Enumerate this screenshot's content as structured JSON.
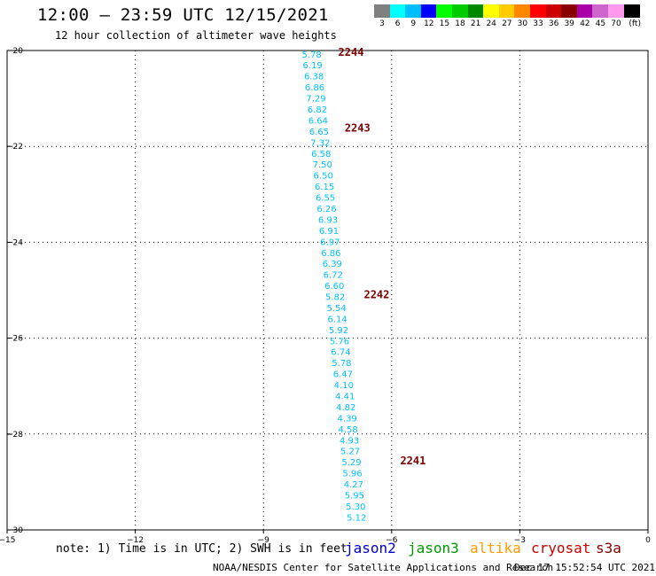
{
  "title": "12:00 — 23:59 UTC 12/15/2021",
  "subtitle": "12 hour collection of altimeter wave heights",
  "note": "note: 1) Time is in UTC; 2) SWH is in feet",
  "satellites": [
    {
      "name": "jason2",
      "color": "#0000cc"
    },
    {
      "name": "jason3",
      "color": "#009900"
    },
    {
      "name": "altika",
      "color": "#ff9900"
    },
    {
      "name": "cryosat",
      "color": "#cc0000"
    },
    {
      "name": "s3a",
      "color": "#800000"
    }
  ],
  "credit": "NOAA/NESDIS Center for Satellite Applications and Research",
  "timestamp": "Dec 17 15:52:54 UTC 2021",
  "colorbar": {
    "unit": "(ft)",
    "bins": [
      {
        "label": "3",
        "color": "#808080"
      },
      {
        "label": "6",
        "color": "#00ffff"
      },
      {
        "label": "9",
        "color": "#00bfff"
      },
      {
        "label": "12",
        "color": "#0000ff"
      },
      {
        "label": "15",
        "color": "#00ff00"
      },
      {
        "label": "18",
        "color": "#00cc00"
      },
      {
        "label": "21",
        "color": "#008800"
      },
      {
        "label": "24",
        "color": "#ffff00"
      },
      {
        "label": "27",
        "color": "#ffcc00"
      },
      {
        "label": "30",
        "color": "#ff8800"
      },
      {
        "label": "33",
        "color": "#ff0000"
      },
      {
        "label": "36",
        "color": "#cc0000"
      },
      {
        "label": "39",
        "color": "#880000"
      },
      {
        "label": "42",
        "color": "#aa00aa"
      },
      {
        "label": "45",
        "color": "#cc66cc"
      },
      {
        "label": "70",
        "color": "#ff99ee"
      },
      {
        "label": "",
        "color": "#000000"
      }
    ]
  },
  "chart_data": {
    "type": "scatter",
    "xlim": [
      -15,
      0
    ],
    "ylim": [
      -30,
      -20
    ],
    "x_ticks": [
      -15,
      -12,
      -9,
      -6,
      -3,
      0
    ],
    "y_ticks": [
      -20,
      -22,
      -24,
      -26,
      -28,
      -30
    ],
    "grid": true,
    "value_color": "#00bfff",
    "values": [
      {
        "x": -7.87,
        "y": -20.07,
        "v": "5.78"
      },
      {
        "x": -7.85,
        "y": -20.3,
        "v": "6.19"
      },
      {
        "x": -7.82,
        "y": -20.53,
        "v": "6.38"
      },
      {
        "x": -7.8,
        "y": -20.76,
        "v": "6.86"
      },
      {
        "x": -7.77,
        "y": -20.99,
        "v": "7.29"
      },
      {
        "x": -7.74,
        "y": -21.22,
        "v": "6.82"
      },
      {
        "x": -7.72,
        "y": -21.45,
        "v": "6.64"
      },
      {
        "x": -7.7,
        "y": -21.68,
        "v": "6.65"
      },
      {
        "x": -7.67,
        "y": -21.91,
        "v": "7.32"
      },
      {
        "x": -7.65,
        "y": -22.14,
        "v": "6.58"
      },
      {
        "x": -7.62,
        "y": -22.37,
        "v": "7.50"
      },
      {
        "x": -7.6,
        "y": -22.6,
        "v": "6.50"
      },
      {
        "x": -7.57,
        "y": -22.83,
        "v": "6.15"
      },
      {
        "x": -7.55,
        "y": -23.06,
        "v": "6.55"
      },
      {
        "x": -7.52,
        "y": -23.29,
        "v": "6.26"
      },
      {
        "x": -7.49,
        "y": -23.52,
        "v": "6.93"
      },
      {
        "x": -7.47,
        "y": -23.75,
        "v": "6.91"
      },
      {
        "x": -7.44,
        "y": -23.98,
        "v": "6.97"
      },
      {
        "x": -7.42,
        "y": -24.21,
        "v": "6.86"
      },
      {
        "x": -7.39,
        "y": -24.44,
        "v": "6.39"
      },
      {
        "x": -7.37,
        "y": -24.67,
        "v": "6.72"
      },
      {
        "x": -7.34,
        "y": -24.9,
        "v": "6.60"
      },
      {
        "x": -7.32,
        "y": -25.13,
        "v": "5.82"
      },
      {
        "x": -7.29,
        "y": -25.36,
        "v": "5.54"
      },
      {
        "x": -7.27,
        "y": -25.59,
        "v": "6.14"
      },
      {
        "x": -7.24,
        "y": -25.82,
        "v": "5.92"
      },
      {
        "x": -7.22,
        "y": -26.05,
        "v": "5.76"
      },
      {
        "x": -7.19,
        "y": -26.28,
        "v": "6.74"
      },
      {
        "x": -7.17,
        "y": -26.51,
        "v": "5.78"
      },
      {
        "x": -7.14,
        "y": -26.74,
        "v": "6.47"
      },
      {
        "x": -7.12,
        "y": -26.97,
        "v": "4.10"
      },
      {
        "x": -7.09,
        "y": -27.2,
        "v": "4.41"
      },
      {
        "x": -7.07,
        "y": -27.43,
        "v": "4.82"
      },
      {
        "x": -7.04,
        "y": -27.66,
        "v": "4.39"
      },
      {
        "x": -7.02,
        "y": -27.89,
        "v": "4.58"
      },
      {
        "x": -6.99,
        "y": -28.12,
        "v": "4.93"
      },
      {
        "x": -6.97,
        "y": -28.35,
        "v": "5.27"
      },
      {
        "x": -6.94,
        "y": -28.58,
        "v": "5.29"
      },
      {
        "x": -6.92,
        "y": -28.81,
        "v": "5.96"
      },
      {
        "x": -6.89,
        "y": -29.04,
        "v": "4.27"
      },
      {
        "x": -6.87,
        "y": -29.27,
        "v": "5.95"
      },
      {
        "x": -6.84,
        "y": -29.5,
        "v": "5.30"
      },
      {
        "x": -6.82,
        "y": -29.73,
        "v": "5.12"
      }
    ],
    "time_labels": [
      {
        "x": -6.95,
        "y": -20.04,
        "text": "2244"
      },
      {
        "x": -6.8,
        "y": -21.62,
        "text": "2243"
      },
      {
        "x": -6.35,
        "y": -25.09,
        "text": "2242"
      },
      {
        "x": -5.5,
        "y": -28.56,
        "text": "2241"
      }
    ],
    "time_label_color": "#800000"
  }
}
